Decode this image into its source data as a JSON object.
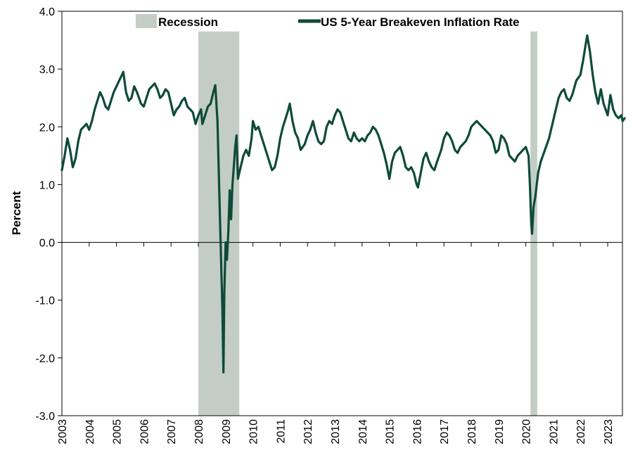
{
  "chart_data": {
    "type": "line",
    "title": "",
    "xlabel": "",
    "ylabel": "Percent",
    "ylim": [
      -3.0,
      4.0
    ],
    "xlim": [
      "2003",
      "2023"
    ],
    "y_ticks": [
      "4.0",
      "3.0",
      "2.0",
      "1.0",
      "0.0",
      "-1.0",
      "-2.0",
      "-3.0"
    ],
    "x_ticks": [
      "2003",
      "2004",
      "2005",
      "2006",
      "2007",
      "2008",
      "2009",
      "2010",
      "2011",
      "2012",
      "2013",
      "2014",
      "2015",
      "2016",
      "2017",
      "2018",
      "2019",
      "2020",
      "2021",
      "2022",
      "2023"
    ],
    "grid": false,
    "legend": {
      "placement": "top",
      "entries": [
        {
          "name": "Recession",
          "kind": "band",
          "color": "#c3cdc5"
        },
        {
          "name": "US 5-Year Breakeven Inflation Rate",
          "kind": "line",
          "color": "#0e4a3a"
        }
      ]
    },
    "recessions": [
      {
        "start": 2008.0,
        "end": 2009.5
      },
      {
        "start": 2020.17,
        "end": 2020.42
      }
    ],
    "series": [
      {
        "name": "US 5-Year Breakeven Inflation Rate",
        "color": "#0e4a3a",
        "points": [
          [
            2003.0,
            1.25
          ],
          [
            2003.1,
            1.5
          ],
          [
            2003.2,
            1.8
          ],
          [
            2003.3,
            1.6
          ],
          [
            2003.4,
            1.3
          ],
          [
            2003.5,
            1.45
          ],
          [
            2003.6,
            1.75
          ],
          [
            2003.7,
            1.95
          ],
          [
            2003.8,
            2.0
          ],
          [
            2003.9,
            2.05
          ],
          [
            2004.0,
            1.95
          ],
          [
            2004.1,
            2.1
          ],
          [
            2004.2,
            2.3
          ],
          [
            2004.3,
            2.45
          ],
          [
            2004.4,
            2.6
          ],
          [
            2004.5,
            2.5
          ],
          [
            2004.6,
            2.35
          ],
          [
            2004.7,
            2.3
          ],
          [
            2004.8,
            2.45
          ],
          [
            2004.9,
            2.6
          ],
          [
            2005.0,
            2.7
          ],
          [
            2005.1,
            2.8
          ],
          [
            2005.2,
            2.9
          ],
          [
            2005.25,
            2.95
          ],
          [
            2005.35,
            2.6
          ],
          [
            2005.45,
            2.45
          ],
          [
            2005.55,
            2.5
          ],
          [
            2005.65,
            2.7
          ],
          [
            2005.75,
            2.6
          ],
          [
            2005.9,
            2.4
          ],
          [
            2006.0,
            2.35
          ],
          [
            2006.1,
            2.5
          ],
          [
            2006.2,
            2.65
          ],
          [
            2006.3,
            2.7
          ],
          [
            2006.4,
            2.75
          ],
          [
            2006.5,
            2.65
          ],
          [
            2006.6,
            2.5
          ],
          [
            2006.7,
            2.55
          ],
          [
            2006.8,
            2.65
          ],
          [
            2006.9,
            2.6
          ],
          [
            2007.0,
            2.4
          ],
          [
            2007.1,
            2.2
          ],
          [
            2007.2,
            2.3
          ],
          [
            2007.3,
            2.35
          ],
          [
            2007.4,
            2.45
          ],
          [
            2007.5,
            2.5
          ],
          [
            2007.6,
            2.35
          ],
          [
            2007.7,
            2.3
          ],
          [
            2007.8,
            2.25
          ],
          [
            2007.9,
            2.05
          ],
          [
            2008.0,
            2.2
          ],
          [
            2008.1,
            2.3
          ],
          [
            2008.15,
            2.05
          ],
          [
            2008.25,
            2.2
          ],
          [
            2008.35,
            2.35
          ],
          [
            2008.45,
            2.4
          ],
          [
            2008.55,
            2.6
          ],
          [
            2008.62,
            2.72
          ],
          [
            2008.7,
            2.1
          ],
          [
            2008.75,
            1.2
          ],
          [
            2008.8,
            0.3
          ],
          [
            2008.85,
            -0.6
          ],
          [
            2008.88,
            -1.1
          ],
          [
            2008.92,
            -2.25
          ],
          [
            2008.95,
            -0.9
          ],
          [
            2009.0,
            0.0
          ],
          [
            2009.05,
            -0.3
          ],
          [
            2009.1,
            0.2
          ],
          [
            2009.15,
            0.9
          ],
          [
            2009.2,
            0.4
          ],
          [
            2009.25,
            1.0
          ],
          [
            2009.3,
            1.3
          ],
          [
            2009.35,
            1.65
          ],
          [
            2009.4,
            1.85
          ],
          [
            2009.45,
            1.1
          ],
          [
            2009.55,
            1.3
          ],
          [
            2009.65,
            1.5
          ],
          [
            2009.75,
            1.6
          ],
          [
            2009.85,
            1.5
          ],
          [
            2009.95,
            1.8
          ],
          [
            2010.0,
            2.1
          ],
          [
            2010.1,
            1.95
          ],
          [
            2010.2,
            2.0
          ],
          [
            2010.3,
            1.85
          ],
          [
            2010.4,
            1.7
          ],
          [
            2010.5,
            1.55
          ],
          [
            2010.6,
            1.4
          ],
          [
            2010.7,
            1.25
          ],
          [
            2010.8,
            1.3
          ],
          [
            2010.9,
            1.5
          ],
          [
            2011.0,
            1.8
          ],
          [
            2011.1,
            2.0
          ],
          [
            2011.2,
            2.15
          ],
          [
            2011.3,
            2.3
          ],
          [
            2011.35,
            2.4
          ],
          [
            2011.45,
            2.1
          ],
          [
            2011.55,
            1.9
          ],
          [
            2011.65,
            1.8
          ],
          [
            2011.75,
            1.6
          ],
          [
            2011.9,
            1.7
          ],
          [
            2012.0,
            1.85
          ],
          [
            2012.1,
            1.95
          ],
          [
            2012.2,
            2.1
          ],
          [
            2012.3,
            1.9
          ],
          [
            2012.4,
            1.75
          ],
          [
            2012.5,
            1.7
          ],
          [
            2012.6,
            1.75
          ],
          [
            2012.7,
            2.0
          ],
          [
            2012.8,
            2.1
          ],
          [
            2012.9,
            2.05
          ],
          [
            2013.0,
            2.2
          ],
          [
            2013.1,
            2.3
          ],
          [
            2013.2,
            2.25
          ],
          [
            2013.3,
            2.1
          ],
          [
            2013.4,
            1.95
          ],
          [
            2013.5,
            1.8
          ],
          [
            2013.6,
            1.75
          ],
          [
            2013.7,
            1.9
          ],
          [
            2013.8,
            1.8
          ],
          [
            2013.9,
            1.75
          ],
          [
            2014.0,
            1.8
          ],
          [
            2014.1,
            1.75
          ],
          [
            2014.2,
            1.85
          ],
          [
            2014.3,
            1.9
          ],
          [
            2014.4,
            2.0
          ],
          [
            2014.5,
            1.95
          ],
          [
            2014.6,
            1.85
          ],
          [
            2014.7,
            1.7
          ],
          [
            2014.8,
            1.55
          ],
          [
            2014.9,
            1.35
          ],
          [
            2015.0,
            1.1
          ],
          [
            2015.1,
            1.4
          ],
          [
            2015.2,
            1.55
          ],
          [
            2015.3,
            1.6
          ],
          [
            2015.4,
            1.65
          ],
          [
            2015.5,
            1.5
          ],
          [
            2015.6,
            1.3
          ],
          [
            2015.7,
            1.25
          ],
          [
            2015.8,
            1.3
          ],
          [
            2015.9,
            1.2
          ],
          [
            2016.0,
            1.0
          ],
          [
            2016.05,
            0.95
          ],
          [
            2016.15,
            1.2
          ],
          [
            2016.25,
            1.45
          ],
          [
            2016.35,
            1.55
          ],
          [
            2016.45,
            1.4
          ],
          [
            2016.55,
            1.3
          ],
          [
            2016.65,
            1.25
          ],
          [
            2016.75,
            1.4
          ],
          [
            2016.9,
            1.6
          ],
          [
            2017.0,
            1.8
          ],
          [
            2017.1,
            1.9
          ],
          [
            2017.2,
            1.85
          ],
          [
            2017.3,
            1.75
          ],
          [
            2017.4,
            1.6
          ],
          [
            2017.5,
            1.55
          ],
          [
            2017.6,
            1.65
          ],
          [
            2017.7,
            1.7
          ],
          [
            2017.8,
            1.75
          ],
          [
            2017.9,
            1.85
          ],
          [
            2018.0,
            2.0
          ],
          [
            2018.1,
            2.05
          ],
          [
            2018.2,
            2.1
          ],
          [
            2018.3,
            2.05
          ],
          [
            2018.4,
            2.0
          ],
          [
            2018.5,
            1.95
          ],
          [
            2018.6,
            1.9
          ],
          [
            2018.7,
            1.85
          ],
          [
            2018.8,
            1.75
          ],
          [
            2018.9,
            1.55
          ],
          [
            2019.0,
            1.6
          ],
          [
            2019.1,
            1.85
          ],
          [
            2019.2,
            1.8
          ],
          [
            2019.3,
            1.7
          ],
          [
            2019.4,
            1.5
          ],
          [
            2019.5,
            1.45
          ],
          [
            2019.6,
            1.4
          ],
          [
            2019.7,
            1.5
          ],
          [
            2019.8,
            1.55
          ],
          [
            2019.9,
            1.6
          ],
          [
            2020.0,
            1.65
          ],
          [
            2020.1,
            1.5
          ],
          [
            2020.15,
            1.0
          ],
          [
            2020.2,
            0.3
          ],
          [
            2020.23,
            0.15
          ],
          [
            2020.28,
            0.6
          ],
          [
            2020.35,
            0.8
          ],
          [
            2020.45,
            1.2
          ],
          [
            2020.55,
            1.4
          ],
          [
            2020.7,
            1.6
          ],
          [
            2020.85,
            1.8
          ],
          [
            2021.0,
            2.1
          ],
          [
            2021.1,
            2.3
          ],
          [
            2021.2,
            2.5
          ],
          [
            2021.3,
            2.6
          ],
          [
            2021.4,
            2.65
          ],
          [
            2021.5,
            2.5
          ],
          [
            2021.6,
            2.45
          ],
          [
            2021.7,
            2.55
          ],
          [
            2021.85,
            2.8
          ],
          [
            2022.0,
            2.9
          ],
          [
            2022.1,
            3.15
          ],
          [
            2022.2,
            3.45
          ],
          [
            2022.25,
            3.58
          ],
          [
            2022.35,
            3.3
          ],
          [
            2022.45,
            2.9
          ],
          [
            2022.55,
            2.6
          ],
          [
            2022.65,
            2.4
          ],
          [
            2022.75,
            2.65
          ],
          [
            2022.85,
            2.4
          ],
          [
            2023.0,
            2.2
          ],
          [
            2023.1,
            2.55
          ],
          [
            2023.2,
            2.3
          ],
          [
            2023.3,
            2.2
          ],
          [
            2023.4,
            2.15
          ],
          [
            2023.5,
            2.2
          ],
          [
            2023.55,
            2.1
          ],
          [
            2023.62,
            2.15
          ]
        ]
      }
    ]
  }
}
